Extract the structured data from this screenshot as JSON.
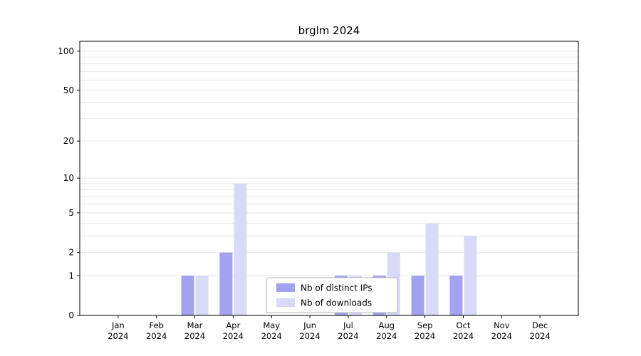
{
  "chart_data": {
    "type": "bar",
    "title": "brglm 2024",
    "xlabel": "",
    "ylabel": "",
    "scale": "log10(1+x)",
    "ylim": [
      0,
      119
    ],
    "grid": true,
    "legend_position": "bottom-center-inside",
    "categories": [
      "Jan 2024",
      "Feb 2024",
      "Mar 2024",
      "Apr 2024",
      "May 2024",
      "Jun 2024",
      "Jul 2024",
      "Aug 2024",
      "Sep 2024",
      "Oct 2024",
      "Nov 2024",
      "Dec 2024"
    ],
    "series": [
      {
        "name": "Nb of distinct IPs",
        "color": "#a2a2ee",
        "values": [
          0,
          0,
          1,
          2,
          0,
          0,
          1,
          1,
          1,
          1,
          0,
          0
        ]
      },
      {
        "name": "Nb of downloads",
        "color": "#d9d9f8",
        "values": [
          0,
          0,
          1,
          9,
          0,
          0,
          1,
          2,
          4,
          3,
          0,
          0
        ]
      }
    ],
    "y_ticks": [
      0,
      1,
      2,
      5,
      10,
      20,
      50,
      100
    ],
    "minor_gridlines": [
      1,
      2,
      3,
      4,
      5,
      6,
      7,
      8,
      9,
      10,
      20,
      30,
      40,
      50,
      60,
      70,
      80,
      90,
      100
    ],
    "colors": {
      "grid": "#e7e7e7",
      "axis": "#000000",
      "legend_border": "#b3b3b3",
      "legend_background": "#ffffff",
      "text": "#000000"
    }
  }
}
